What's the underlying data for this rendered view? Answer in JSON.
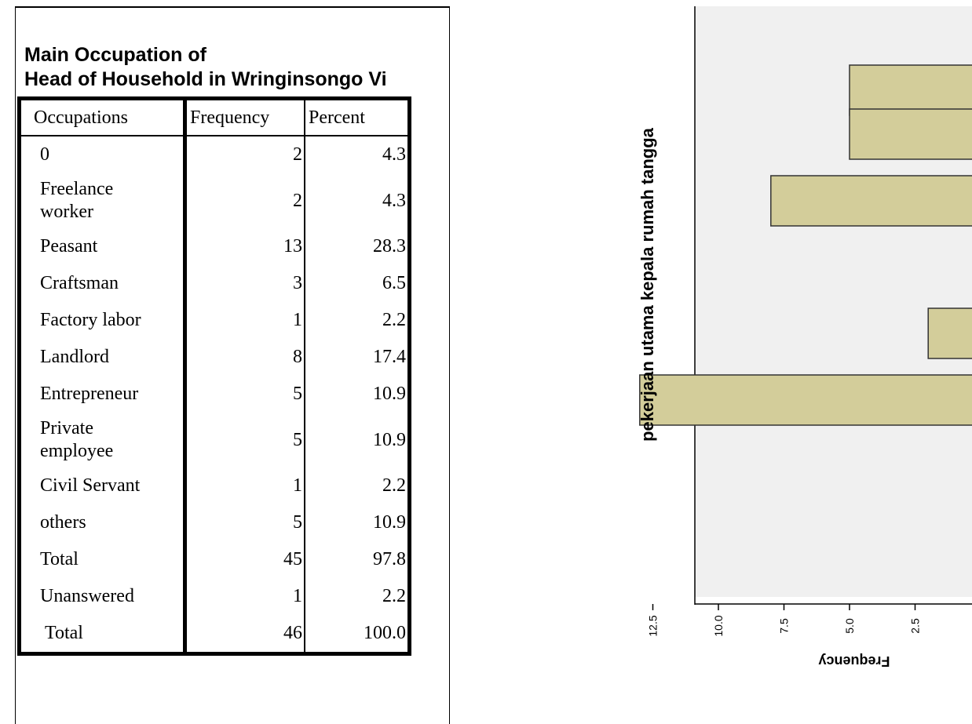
{
  "table": {
    "title_line1": "Main Occupation of",
    "title_line2": "Head of Household in Wringinsongo Vi",
    "headers": {
      "occupation": "Occupations",
      "frequency": "Frequency",
      "percent": "Percent"
    },
    "rows": [
      {
        "occupation": "0",
        "frequency": "2",
        "percent": "4.3"
      },
      {
        "occupation": "Freelance worker",
        "frequency": "2",
        "percent": "4.3"
      },
      {
        "occupation": "Peasant",
        "frequency": "13",
        "percent": "28.3"
      },
      {
        "occupation": "Craftsman",
        "frequency": "3",
        "percent": "6.5"
      },
      {
        "occupation": "Factory labor",
        "frequency": "1",
        "percent": "2.2"
      },
      {
        "occupation": "Landlord",
        "frequency": "8",
        "percent": "17.4"
      },
      {
        "occupation": "Entrepreneur",
        "frequency": "5",
        "percent": "10.9"
      },
      {
        "occupation": "Private employee",
        "frequency": "5",
        "percent": "10.9"
      },
      {
        "occupation": "Civil Servant",
        "frequency": "1",
        "percent": "2.2"
      },
      {
        "occupation": "others",
        "frequency": "5",
        "percent": "10.9"
      },
      {
        "occupation": "Total",
        "frequency": "45",
        "percent": "97.8"
      },
      {
        "occupation": "Unanswered",
        "frequency": "1",
        "percent": "2.2"
      },
      {
        "occupation": "Total",
        "frequency": "46",
        "percent": "100.0"
      }
    ]
  },
  "chart_data": {
    "type": "bar",
    "orientation": "horizontal, rotated and cropped",
    "ylabel": "pekerjaan utama kepala rumah tangga",
    "xlabel": "Frequency",
    "x_ticks": [
      "12.5",
      "10.0",
      "7.5",
      "5.0",
      "2.5"
    ],
    "xlim": [
      0,
      14
    ],
    "values_visible_top_to_bottom": [
      5,
      5,
      8,
      null,
      null,
      2,
      13
    ],
    "colors": {
      "bar_fill": "#d3cd9a",
      "plot_bg": "#f0f0f0",
      "bar_stroke": "#333333"
    },
    "grid": false
  }
}
